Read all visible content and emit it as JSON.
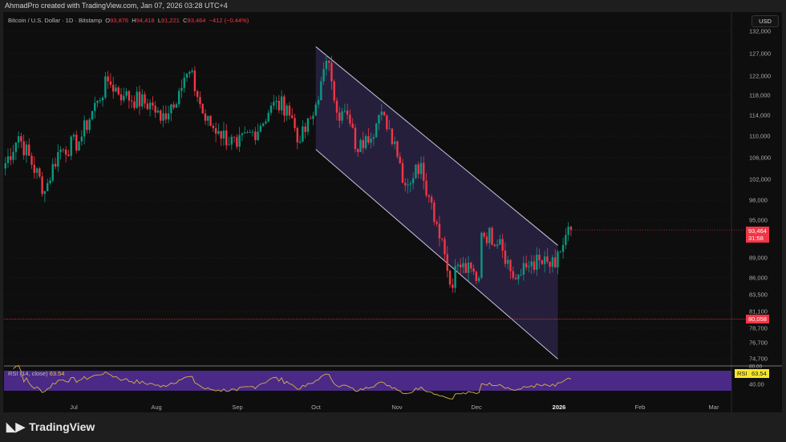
{
  "header": {
    "caption": "AhmadPro created with TradingView.com, Jan 07, 2026 03:28 UTC+4"
  },
  "legend": {
    "symbol": "Bitcoin / U.S. Dollar · 1D · Bitstamp",
    "o_label": "O",
    "o": "93,876",
    "h_label": "H",
    "h": "94,418",
    "l_label": "L",
    "l": "91,221",
    "c_label": "C",
    "c": "93,464",
    "change": "−412 (−0.44%)"
  },
  "colors": {
    "up": "#089981",
    "down": "#f23645",
    "channel_fill": "#2a2244",
    "rsi_band": "#4a2a86",
    "rsi_line": "#d4b24a"
  },
  "axis": {
    "currency": "USD",
    "price_ticks": [
      "132,000",
      "127,000",
      "122,000",
      "118,000",
      "114,000",
      "110,000",
      "106,000",
      "102,000",
      "98,000",
      "95,000",
      "89,000",
      "86,000",
      "83,500",
      "81,100",
      "78,700",
      "76,700",
      "74,700"
    ],
    "time_ticks": [
      "Jul",
      "Aug",
      "Sep",
      "Oct",
      "Nov",
      "Dec",
      "2026",
      "Feb",
      "Mar"
    ]
  },
  "last_price": {
    "value": "93,464",
    "countdown": "31:58"
  },
  "support_line": {
    "value": "80,058"
  },
  "rsi": {
    "label": "RSI (14, close)",
    "value": "63.54",
    "tag": "RSI",
    "upper": "80.00",
    "lower": "40.00"
  },
  "brand": {
    "name": "TradingView"
  },
  "chart_data": {
    "type": "candlestick",
    "scale": "log",
    "ylim": [
      74700,
      132000
    ],
    "xlim": [
      "2025-06-04",
      "2026-03-15"
    ],
    "close_path": [
      [
        "2025-06-04",
        104000
      ],
      [
        "2025-06-10",
        110000
      ],
      [
        "2025-06-20",
        100000
      ],
      [
        "2025-06-25",
        107000
      ],
      [
        "2025-07-03",
        109000
      ],
      [
        "2025-07-10",
        117000
      ],
      [
        "2025-07-14",
        121000
      ],
      [
        "2025-07-20",
        118000
      ],
      [
        "2025-07-31",
        116000
      ],
      [
        "2025-08-03",
        113000
      ],
      [
        "2025-08-10",
        119000
      ],
      [
        "2025-08-14",
        123000
      ],
      [
        "2025-08-20",
        113000
      ],
      [
        "2025-08-25",
        111000
      ],
      [
        "2025-09-01",
        108000
      ],
      [
        "2025-09-10",
        112000
      ],
      [
        "2025-09-14",
        116000
      ],
      [
        "2025-09-20",
        116000
      ],
      [
        "2025-09-25",
        109000
      ],
      [
        "2025-09-30",
        114000
      ],
      [
        "2025-10-03",
        121000
      ],
      [
        "2025-10-06",
        125000
      ],
      [
        "2025-10-10",
        113000
      ],
      [
        "2025-10-12",
        115000
      ],
      [
        "2025-10-17",
        107000
      ],
      [
        "2025-10-20",
        110000
      ],
      [
        "2025-10-27",
        114000
      ],
      [
        "2025-10-31",
        109000
      ],
      [
        "2025-11-04",
        101000
      ],
      [
        "2025-11-10",
        105000
      ],
      [
        "2025-11-13",
        99000
      ],
      [
        "2025-11-18",
        92000
      ],
      [
        "2025-11-21",
        85000
      ],
      [
        "2025-11-24",
        88000
      ],
      [
        "2025-12-02",
        86000
      ],
      [
        "2025-12-03",
        93000
      ],
      [
        "2025-12-10",
        92000
      ],
      [
        "2025-12-15",
        86000
      ],
      [
        "2025-12-18",
        86500
      ],
      [
        "2025-12-22",
        88500
      ],
      [
        "2025-12-31",
        87600
      ],
      [
        "2026-01-02",
        90000
      ],
      [
        "2026-01-05",
        94000
      ],
      [
        "2026-01-06",
        93464
      ]
    ],
    "channel": {
      "upper": [
        [
          "2025-10-01",
          128500
        ],
        [
          "2026-01-01",
          91000
        ]
      ],
      "lower": [
        [
          "2025-10-01",
          107500
        ],
        [
          "2026-01-01",
          74700
        ]
      ]
    }
  }
}
